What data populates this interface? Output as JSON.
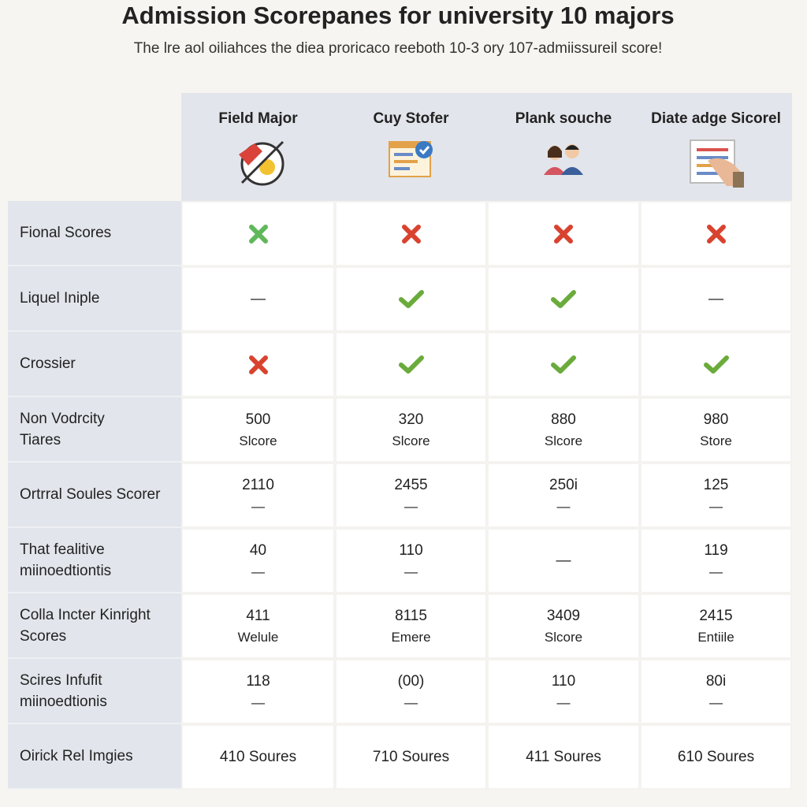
{
  "title": "Admission Scorepanes for university 10 majors",
  "subtitle": "The lre aol oiliahces the diea proricaco reeboth 10-3 ory 107-admiissureil score!",
  "table": {
    "columns": [
      "Field Major",
      "Cuy Stofer",
      "Plank souche",
      "Diate adge Sicorel"
    ],
    "rows": [
      {
        "label": [
          "Fional Scores"
        ]
      },
      {
        "label": [
          "Liquel Iniple"
        ],
        "cells": [
          [
            "—"
          ],
          null,
          null,
          [
            "—"
          ]
        ]
      },
      {
        "label": [
          "Crossier"
        ]
      },
      {
        "label": [
          "Non Vodrcity",
          "Tiares"
        ],
        "cells": [
          [
            "500",
            "Slcore"
          ],
          [
            "320",
            "Slcore"
          ],
          [
            "880",
            "Slcore"
          ],
          [
            "980",
            "Store"
          ]
        ]
      },
      {
        "label": [
          "Ortrral Soules Scorer"
        ],
        "cells": [
          [
            "2110",
            "—"
          ],
          [
            "2455",
            "—"
          ],
          [
            "250i",
            "—"
          ],
          [
            "125",
            "—"
          ]
        ]
      },
      {
        "label": [
          "That fealitive",
          "miinoedtiontis"
        ],
        "cells": [
          [
            "40",
            "—"
          ],
          [
            "110",
            "—"
          ],
          [
            "—"
          ],
          [
            "119",
            "—"
          ]
        ]
      },
      {
        "label": [
          "Colla Incter Kinright",
          "Scores"
        ],
        "cells": [
          [
            "411",
            "Welule"
          ],
          [
            "8115",
            "Emere"
          ],
          [
            "3409",
            "Slcore"
          ],
          [
            "2415",
            "Entiile"
          ]
        ]
      },
      {
        "label": [
          "Scires Infufit",
          "miinoedtionis"
        ],
        "cells": [
          [
            "118",
            "—"
          ],
          [
            "(00)",
            "—"
          ],
          [
            "110",
            "—"
          ],
          [
            "80i",
            "—"
          ]
        ]
      },
      {
        "label": [
          "Oirick Rel Imgies"
        ],
        "cells": [
          [
            "410 Soures"
          ],
          [
            "710 Soures"
          ],
          [
            "411 Soures"
          ],
          [
            "610 Soures"
          ]
        ]
      }
    ]
  }
}
